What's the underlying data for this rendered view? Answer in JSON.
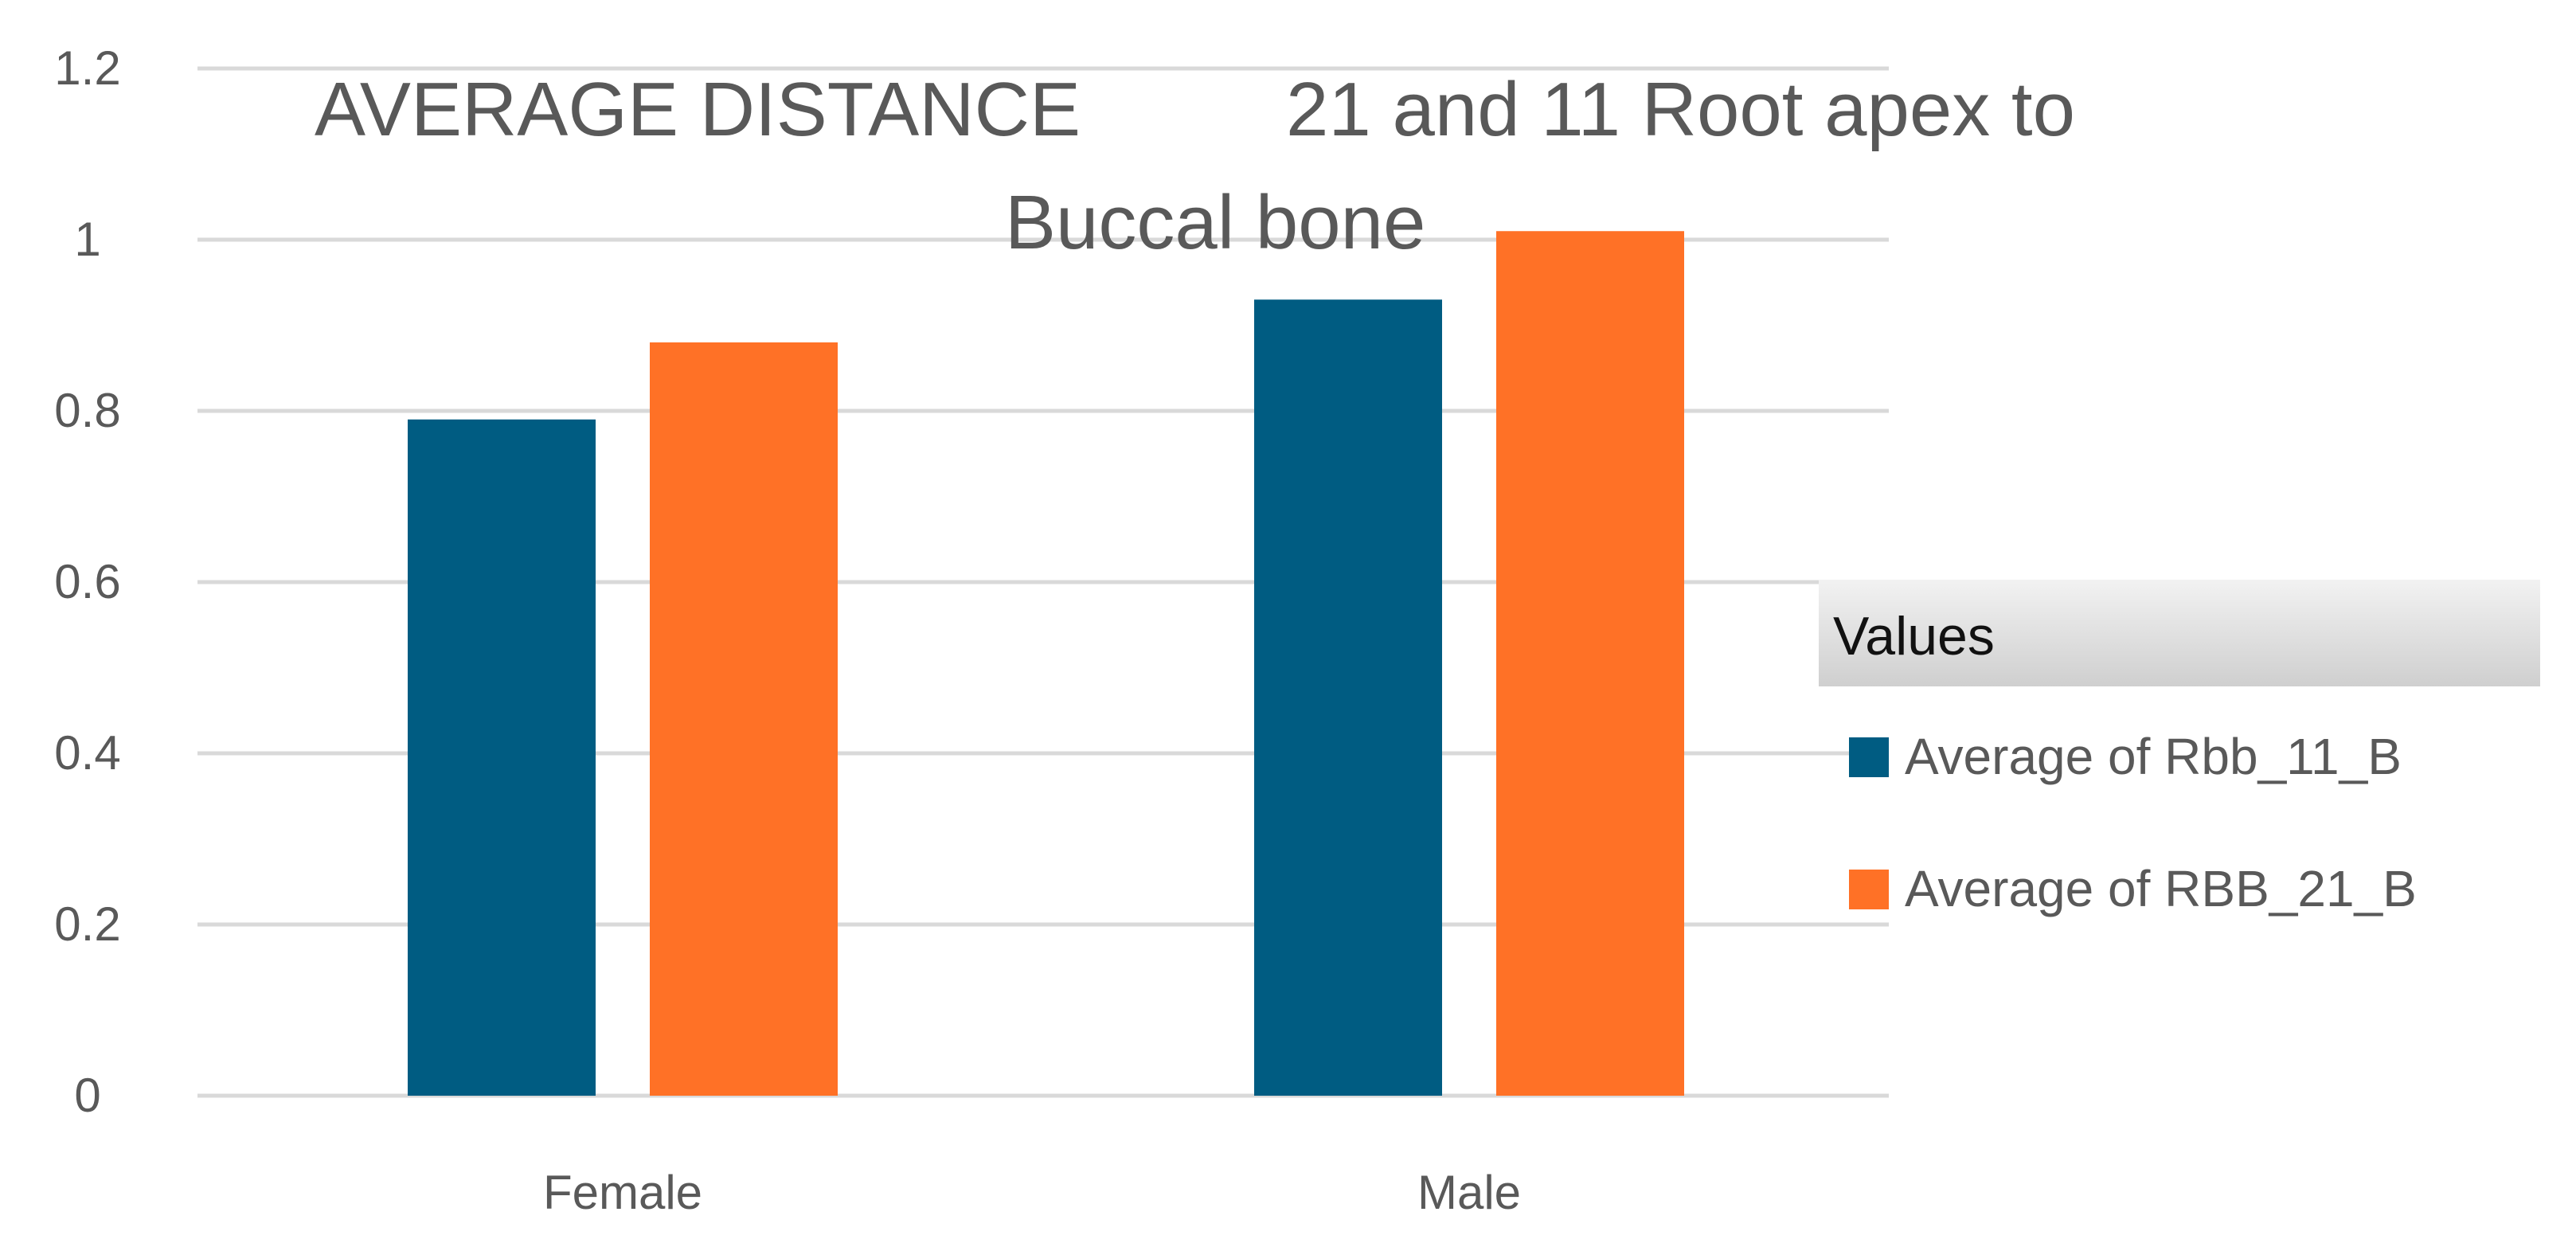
{
  "colors": {
    "background": "#ffffff",
    "gridline": "#d9d9d9",
    "axis_text": "#595959",
    "series_1": "#005c82",
    "series_2": "#ff7126",
    "legend_header_bg": "#d4d4d4"
  },
  "legend": {
    "title": "Values",
    "placement": "right"
  },
  "chart_data": {
    "type": "bar",
    "title_line1_part1": "AVERAGE DISTANCE",
    "title_line1_part2": "21 and 11  Root apex to",
    "title_line2": "Buccal bone",
    "categories": [
      "Female",
      "Male"
    ],
    "series": [
      {
        "name": "Average of Rbb_11_B",
        "values": [
          0.79,
          0.93
        ]
      },
      {
        "name": "Average of RBB_21_B",
        "values": [
          0.88,
          1.01
        ]
      }
    ],
    "yticks": [
      "0",
      "0.2",
      "0.4",
      "0.6",
      "0.8",
      "1",
      "1.2"
    ],
    "ylim": [
      0,
      1.2
    ],
    "grid": true,
    "xlabel": "",
    "ylabel": ""
  }
}
